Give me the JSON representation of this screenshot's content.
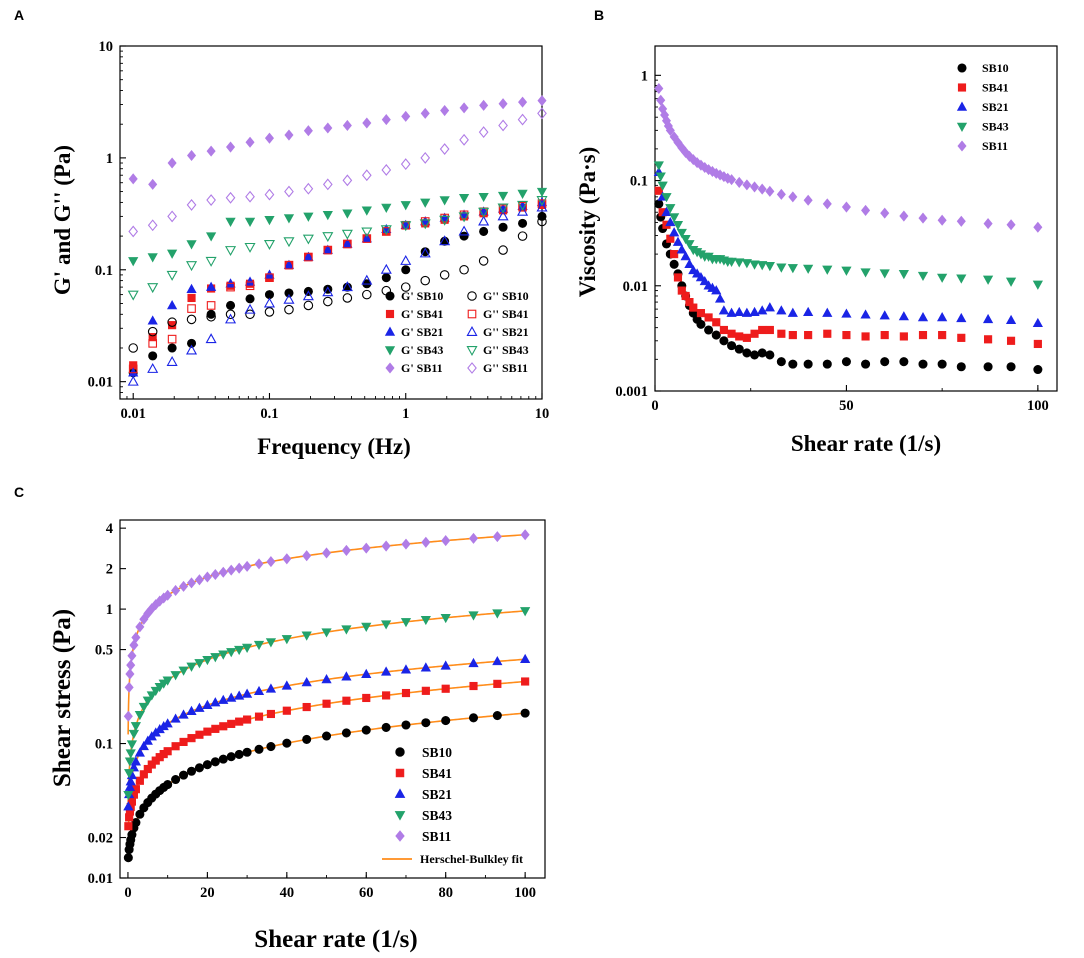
{
  "figure": {
    "panels": [
      "A",
      "B",
      "C"
    ]
  },
  "chart_data": [
    {
      "panel": "A",
      "type": "scatter",
      "title": "",
      "xlabel": "Frequency (Hz)",
      "ylabel": "G' and G'' (Pa)",
      "xscale": "log",
      "yscale": "log",
      "xlim": [
        0.008,
        10
      ],
      "ylim": [
        0.007,
        10
      ],
      "xticks": [
        0.01,
        0.1,
        1,
        10
      ],
      "xtick_labels": [
        "0.01",
        "0.1",
        "1",
        "10"
      ],
      "yticks": [
        0.01,
        0.1,
        1,
        10
      ],
      "ytick_labels": [
        "0.01",
        "0.1",
        "1",
        "10"
      ],
      "legend_position": "bottom-right",
      "legend_columns": 2,
      "x": [
        0.01,
        0.0139,
        0.0193,
        0.0268,
        0.0373,
        0.0518,
        0.072,
        0.1,
        0.139,
        0.193,
        0.268,
        0.373,
        0.518,
        0.72,
        1.0,
        1.39,
        1.93,
        2.68,
        3.73,
        5.18,
        7.2,
        10.0
      ],
      "series": [
        {
          "name": "G' SB10",
          "marker": "circle",
          "filled": true,
          "color": "#000000",
          "values": [
            0.012,
            0.017,
            0.02,
            0.022,
            0.04,
            0.048,
            0.055,
            0.06,
            0.062,
            0.064,
            0.067,
            0.07,
            0.075,
            0.085,
            0.1,
            0.145,
            0.18,
            0.2,
            0.22,
            0.24,
            0.26,
            0.3
          ]
        },
        {
          "name": "G' SB41",
          "marker": "square",
          "filled": true,
          "color": "#ee1c1c",
          "values": [
            0.014,
            0.025,
            0.032,
            0.056,
            0.068,
            0.072,
            0.075,
            0.085,
            0.11,
            0.13,
            0.15,
            0.17,
            0.19,
            0.22,
            0.25,
            0.26,
            0.28,
            0.3,
            0.32,
            0.34,
            0.36,
            0.38
          ]
        },
        {
          "name": "G' SB21",
          "marker": "triangle-up",
          "filled": true,
          "color": "#1a24e6",
          "values": [
            0.012,
            0.035,
            0.048,
            0.067,
            0.07,
            0.075,
            0.078,
            0.09,
            0.11,
            0.13,
            0.15,
            0.17,
            0.19,
            0.23,
            0.25,
            0.27,
            0.29,
            0.31,
            0.33,
            0.35,
            0.37,
            0.4
          ]
        },
        {
          "name": "G' SB43",
          "marker": "triangle-down",
          "filled": true,
          "color": "#23a26b",
          "values": [
            0.12,
            0.13,
            0.14,
            0.17,
            0.2,
            0.27,
            0.27,
            0.28,
            0.29,
            0.3,
            0.31,
            0.32,
            0.34,
            0.36,
            0.38,
            0.4,
            0.42,
            0.44,
            0.45,
            0.46,
            0.48,
            0.5
          ]
        },
        {
          "name": "G' SB11",
          "marker": "diamond",
          "filled": true,
          "color": "#b07ce6",
          "values": [
            0.65,
            0.58,
            0.9,
            1.05,
            1.15,
            1.25,
            1.38,
            1.5,
            1.6,
            1.75,
            1.85,
            1.95,
            2.05,
            2.2,
            2.35,
            2.5,
            2.65,
            2.8,
            2.95,
            3.05,
            3.15,
            3.25
          ]
        },
        {
          "name": "G'' SB10",
          "marker": "circle",
          "filled": false,
          "color": "#000000",
          "values": [
            0.02,
            0.028,
            0.034,
            0.036,
            0.038,
            0.04,
            0.04,
            0.042,
            0.044,
            0.048,
            0.052,
            0.056,
            0.06,
            0.065,
            0.07,
            0.08,
            0.09,
            0.1,
            0.12,
            0.15,
            0.2,
            0.27
          ]
        },
        {
          "name": "G'' SB41",
          "marker": "square",
          "filled": false,
          "color": "#ee1c1c",
          "values": [
            0.013,
            0.022,
            0.024,
            0.045,
            0.048,
            0.07,
            0.072,
            0.085,
            0.11,
            0.13,
            0.15,
            0.17,
            0.19,
            0.22,
            0.25,
            0.27,
            0.29,
            0.31,
            0.33,
            0.35,
            0.37,
            0.39
          ]
        },
        {
          "name": "G'' SB21",
          "marker": "triangle-up",
          "filled": false,
          "color": "#1a24e6",
          "values": [
            0.01,
            0.013,
            0.015,
            0.019,
            0.024,
            0.036,
            0.044,
            0.05,
            0.054,
            0.058,
            0.063,
            0.07,
            0.08,
            0.1,
            0.12,
            0.14,
            0.18,
            0.22,
            0.27,
            0.3,
            0.33,
            0.36
          ]
        },
        {
          "name": "G'' SB43",
          "marker": "triangle-down",
          "filled": false,
          "color": "#23a26b",
          "values": [
            0.06,
            0.07,
            0.09,
            0.11,
            0.12,
            0.15,
            0.16,
            0.17,
            0.18,
            0.19,
            0.2,
            0.21,
            0.22,
            0.23,
            0.25,
            0.26,
            0.28,
            0.3,
            0.33,
            0.36,
            0.38,
            0.42
          ]
        },
        {
          "name": "G'' SB11",
          "marker": "diamond",
          "filled": false,
          "color": "#b07ce6",
          "values": [
            0.22,
            0.25,
            0.3,
            0.38,
            0.42,
            0.44,
            0.45,
            0.47,
            0.5,
            0.53,
            0.58,
            0.63,
            0.7,
            0.78,
            0.88,
            1.0,
            1.2,
            1.45,
            1.7,
            1.95,
            2.2,
            2.5
          ]
        }
      ]
    },
    {
      "panel": "B",
      "type": "scatter",
      "title": "",
      "xlabel": "Shear rate (1/s)",
      "ylabel": "Viscosity (Pa·s)",
      "xscale": "linear",
      "yscale": "log",
      "xlim": [
        0,
        105
      ],
      "ylim": [
        0.001,
        1.9
      ],
      "xticks": [
        0,
        50,
        100
      ],
      "xtick_labels": [
        "0",
        "50",
        "100"
      ],
      "yticks": [
        0.001,
        0.01,
        0.1,
        1
      ],
      "ytick_labels": [
        "0.001",
        "0.01",
        "0.1",
        "1"
      ],
      "legend_position": "top-right",
      "series": [
        {
          "name": "SB10",
          "marker": "circle",
          "filled": true,
          "color": "#000000",
          "x": [
            1,
            1.5,
            2,
            3,
            4,
            5,
            6,
            7,
            8,
            9,
            10,
            11,
            12,
            14,
            16,
            18,
            20,
            22,
            24,
            26,
            28,
            30,
            33,
            36,
            40,
            45,
            50,
            55,
            60,
            65,
            70,
            75,
            80,
            87,
            93,
            100
          ],
          "values": [
            0.06,
            0.045,
            0.035,
            0.025,
            0.02,
            0.016,
            0.013,
            0.01,
            0.008,
            0.0065,
            0.0055,
            0.0048,
            0.0043,
            0.0038,
            0.0034,
            0.003,
            0.0027,
            0.0025,
            0.0023,
            0.0022,
            0.0023,
            0.0022,
            0.0019,
            0.0018,
            0.0018,
            0.0018,
            0.0019,
            0.0018,
            0.0019,
            0.0019,
            0.0018,
            0.0018,
            0.0017,
            0.0017,
            0.0017,
            0.0016
          ]
        },
        {
          "name": "SB41",
          "marker": "square",
          "filled": true,
          "color": "#ee1c1c",
          "x": [
            1,
            2,
            3,
            4,
            5,
            6,
            7,
            8,
            9,
            10,
            12,
            14,
            16,
            18,
            20,
            22,
            24,
            26,
            28,
            30,
            33,
            36,
            40,
            45,
            50,
            55,
            60,
            65,
            70,
            75,
            80,
            87,
            93,
            100
          ],
          "values": [
            0.08,
            0.05,
            0.038,
            0.028,
            0.02,
            0.012,
            0.009,
            0.008,
            0.007,
            0.0062,
            0.0055,
            0.005,
            0.0045,
            0.0038,
            0.0035,
            0.0033,
            0.0032,
            0.0035,
            0.0038,
            0.0038,
            0.0035,
            0.0034,
            0.0034,
            0.0035,
            0.0034,
            0.0033,
            0.0034,
            0.0033,
            0.0034,
            0.0034,
            0.0032,
            0.0031,
            0.003,
            0.0028
          ]
        },
        {
          "name": "SB21",
          "marker": "triangle-up",
          "filled": true,
          "color": "#1a24e6",
          "x": [
            1,
            2,
            3,
            4,
            5,
            6,
            7,
            8,
            9,
            10,
            11,
            12,
            13,
            14,
            15,
            16,
            17,
            18,
            20,
            22,
            24,
            26,
            28,
            30,
            33,
            36,
            40,
            45,
            50,
            55,
            60,
            65,
            70,
            75,
            80,
            87,
            93,
            100
          ],
          "values": [
            0.12,
            0.07,
            0.05,
            0.04,
            0.032,
            0.026,
            0.022,
            0.019,
            0.016,
            0.014,
            0.013,
            0.012,
            0.011,
            0.01,
            0.0095,
            0.009,
            0.0075,
            0.0058,
            0.0055,
            0.0056,
            0.0055,
            0.0056,
            0.0058,
            0.0062,
            0.0058,
            0.0055,
            0.0056,
            0.0055,
            0.0054,
            0.0053,
            0.0052,
            0.0051,
            0.005,
            0.005,
            0.0049,
            0.0048,
            0.0047,
            0.0044
          ]
        },
        {
          "name": "SB43",
          "marker": "triangle-down",
          "filled": true,
          "color": "#23a26b",
          "x": [
            1,
            1.5,
            2,
            3,
            4,
            5,
            6,
            7,
            8,
            9,
            10,
            11,
            12,
            13,
            14,
            15,
            16,
            17,
            18,
            19,
            20,
            22,
            24,
            26,
            28,
            30,
            33,
            36,
            40,
            45,
            50,
            55,
            60,
            65,
            70,
            75,
            80,
            87,
            93,
            100
          ],
          "values": [
            0.14,
            0.11,
            0.09,
            0.07,
            0.055,
            0.045,
            0.038,
            0.032,
            0.028,
            0.025,
            0.022,
            0.021,
            0.02,
            0.019,
            0.019,
            0.018,
            0.018,
            0.018,
            0.0175,
            0.017,
            0.017,
            0.0168,
            0.0165,
            0.016,
            0.0158,
            0.0155,
            0.015,
            0.0148,
            0.0146,
            0.0143,
            0.014,
            0.0135,
            0.0132,
            0.013,
            0.0125,
            0.012,
            0.0118,
            0.0115,
            0.011,
            0.0103
          ]
        },
        {
          "name": "SB11",
          "marker": "diamond",
          "filled": true,
          "color": "#b07ce6",
          "x": [
            1,
            1.5,
            2,
            2.5,
            3,
            3.5,
            4,
            5,
            6,
            7,
            8,
            9,
            10,
            11,
            12,
            13,
            14,
            15,
            16,
            17,
            18,
            19,
            20,
            22,
            24,
            26,
            28,
            30,
            33,
            36,
            40,
            45,
            50,
            55,
            60,
            65,
            70,
            75,
            80,
            87,
            93,
            100
          ],
          "values": [
            0.75,
            0.58,
            0.48,
            0.42,
            0.37,
            0.33,
            0.3,
            0.26,
            0.23,
            0.205,
            0.185,
            0.17,
            0.158,
            0.148,
            0.14,
            0.133,
            0.127,
            0.122,
            0.117,
            0.113,
            0.109,
            0.105,
            0.102,
            0.096,
            0.091,
            0.087,
            0.083,
            0.079,
            0.074,
            0.07,
            0.065,
            0.06,
            0.056,
            0.052,
            0.049,
            0.046,
            0.044,
            0.042,
            0.041,
            0.039,
            0.038,
            0.036
          ]
        }
      ]
    },
    {
      "panel": "C",
      "type": "scatter",
      "title": "",
      "xlabel": "Shear rate (1/s)",
      "ylabel": "Shear stress (Pa)",
      "xscale": "linear",
      "yscale": "log",
      "xlim": [
        -2,
        105
      ],
      "ylim": [
        0.01,
        4.6
      ],
      "xticks": [
        0,
        20,
        40,
        60,
        80,
        100
      ],
      "xtick_labels": [
        "0",
        "20",
        "40",
        "60",
        "80",
        "100"
      ],
      "yticks": [
        0.01,
        0.02,
        0.1,
        0.5,
        1,
        2,
        4
      ],
      "ytick_labels": [
        "0.01",
        "0.02",
        "0.1",
        "0.5",
        "1",
        "2",
        "4"
      ],
      "legend_position": "bottom-center",
      "fit_label": "Herschel-Bulkley fit",
      "fit_color": "#ff8c1a",
      "series": [
        {
          "name": "SB10",
          "marker": "circle",
          "filled": true,
          "color": "#000000",
          "tau0": 0.012,
          "K": 0.009,
          "n": 0.62
        },
        {
          "name": "SB41",
          "marker": "square",
          "filled": true,
          "color": "#ee1c1c",
          "tau0": 0.02,
          "K": 0.017,
          "n": 0.6
        },
        {
          "name": "SB21",
          "marker": "triangle-up",
          "filled": true,
          "color": "#1a24e6",
          "tau0": 0.024,
          "K": 0.034,
          "n": 0.535
        },
        {
          "name": "SB43",
          "marker": "triangle-down",
          "filled": true,
          "color": "#23a26b",
          "tau0": 0.018,
          "K": 0.081,
          "n": 0.535
        },
        {
          "name": "SB11",
          "marker": "diamond",
          "filled": true,
          "color": "#b07ce6",
          "tau0": 0.0,
          "K": 0.45,
          "n": 0.45
        }
      ],
      "x": [
        0.1,
        0.3,
        0.5,
        0.7,
        1,
        1.5,
        2,
        3,
        4,
        5,
        6,
        7,
        8,
        9,
        10,
        12,
        14,
        16,
        18,
        20,
        22,
        24,
        26,
        28,
        30,
        33,
        36,
        40,
        45,
        50,
        55,
        60,
        65,
        70,
        75,
        80,
        87,
        93,
        100
      ]
    }
  ]
}
